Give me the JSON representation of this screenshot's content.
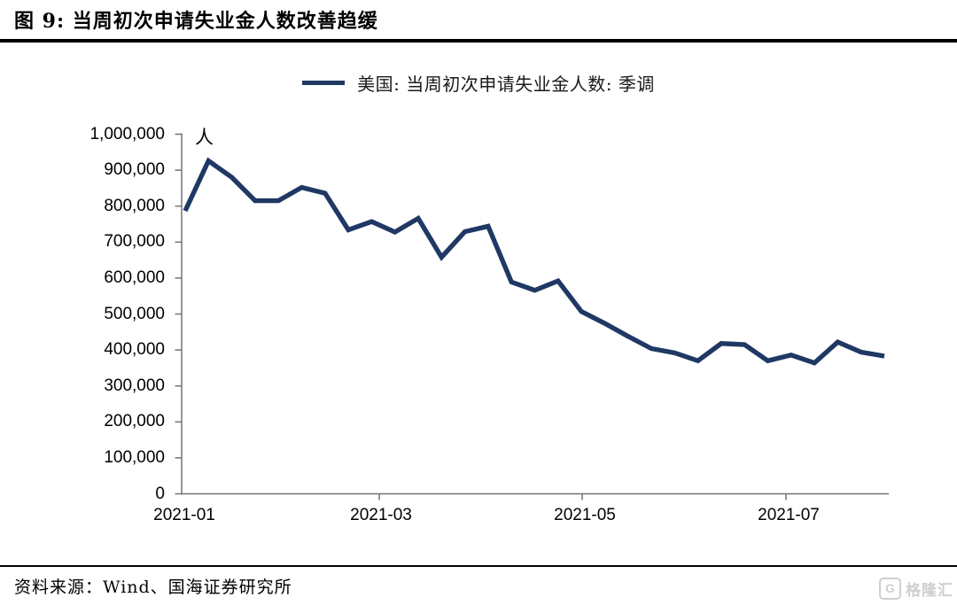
{
  "page": {
    "title": "图 9:  当周初次申请失业金人数改善趋缓",
    "source_note": "资料来源：Wind、国海证券研究所",
    "watermark": {
      "logo_letter": "G",
      "brand": "格隆汇"
    }
  },
  "chart_data": {
    "type": "line",
    "title": "",
    "unit_label": "人",
    "legend_position": "top-center",
    "grid": false,
    "line_color": "#1F3864",
    "axis_color": "#737373",
    "ylim": [
      0,
      1000000
    ],
    "y_tick_step": 100000,
    "y_tick_labels": [
      "0",
      "100,000",
      "200,000",
      "300,000",
      "400,000",
      "500,000",
      "600,000",
      "700,000",
      "800,000",
      "900,000",
      "1,000,000"
    ],
    "x_tick_labels": [
      "2021-01",
      "2021-03",
      "2021-05",
      "2021-07"
    ],
    "series": [
      {
        "name": "美国: 当周初次申请失业金人数: 季调",
        "x": [
          "2021-01-02",
          "2021-01-09",
          "2021-01-16",
          "2021-01-23",
          "2021-01-30",
          "2021-02-06",
          "2021-02-13",
          "2021-02-20",
          "2021-02-27",
          "2021-03-06",
          "2021-03-13",
          "2021-03-20",
          "2021-03-27",
          "2021-04-03",
          "2021-04-10",
          "2021-04-17",
          "2021-04-24",
          "2021-05-01",
          "2021-05-08",
          "2021-05-15",
          "2021-05-22",
          "2021-05-29",
          "2021-06-05",
          "2021-06-12",
          "2021-06-19",
          "2021-06-26",
          "2021-07-03",
          "2021-07-10",
          "2021-07-17",
          "2021-07-24",
          "2021-07-31"
        ],
        "values": [
          787000,
          926000,
          880000,
          815000,
          815000,
          852000,
          836000,
          734000,
          757000,
          728000,
          766000,
          658000,
          729000,
          744000,
          589000,
          566000,
          592000,
          507000,
          474000,
          438000,
          404000,
          392000,
          370000,
          418000,
          415000,
          370000,
          386000,
          364000,
          422000,
          394000,
          383000
        ]
      }
    ]
  }
}
